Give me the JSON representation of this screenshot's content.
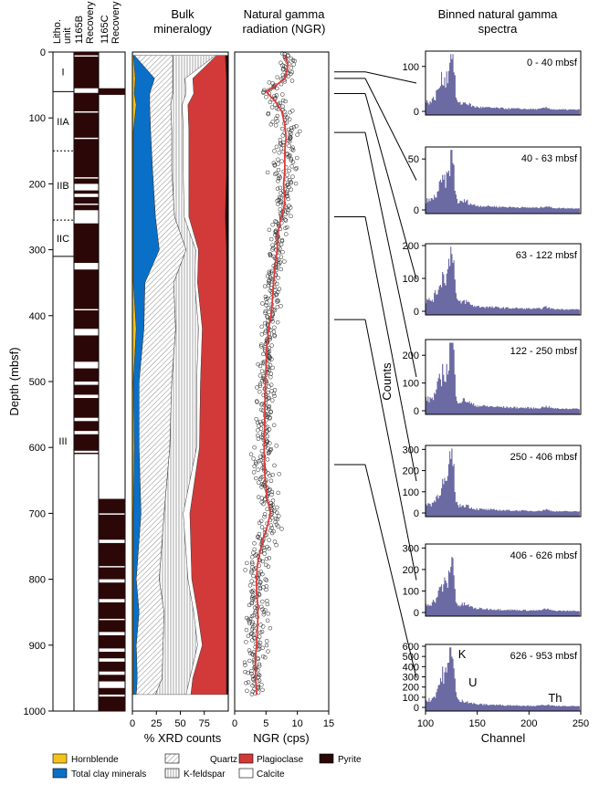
{
  "colors": {
    "hornblende": "#f5c21b",
    "clay": "#0a6fc7",
    "plagioclase": "#d23a3a",
    "pyrite": "#2b0707",
    "spectrum_fill": "#6b6aa3",
    "ngr_fit": "#e23b3b",
    "core_dark": "#2b0707"
  },
  "header": {
    "litho": "Litho.",
    "unit": "unit",
    "hole_b": "1165B",
    "hole_c": "1165C",
    "recovery": "Recovery",
    "bulk_title_1": "Bulk",
    "bulk_title_2": "mineralogy",
    "ngr_title_1": "Natural gamma",
    "ngr_title_2": "radiation (NGR)",
    "spectra_title_1": "Binned natural gamma",
    "spectra_title_2": "spectra"
  },
  "units": [
    {
      "label": "I",
      "top": 0,
      "bottom": 60
    },
    {
      "label": "IIA",
      "top": 60,
      "bottom": 150
    },
    {
      "label": "IIB",
      "top": 150,
      "bottom": 255
    },
    {
      "label": "IIC",
      "top": 255,
      "bottom": 310
    },
    {
      "label": "III",
      "top": 310,
      "bottom": 1000
    }
  ],
  "legend": {
    "hornblende": "Hornblende",
    "clay": "Total clay minerals",
    "quartz": "Quartz",
    "kfeldspar": "K-feldspar",
    "plagioclase": "Plagioclase",
    "calcite": "Calcite",
    "pyrite": "Pyrite"
  },
  "chart_data": [
    {
      "type": "area",
      "id": "bulk-mineralogy",
      "title": "Bulk mineralogy",
      "xlabel": "% XRD counts",
      "ylabel": "Depth (mbsf)",
      "xlim": [
        0,
        100
      ],
      "ylim": [
        1000,
        0
      ],
      "x_ticks": [
        0,
        25,
        50,
        75
      ],
      "y_ticks": [
        0,
        100,
        200,
        300,
        400,
        500,
        600,
        700,
        800,
        900,
        1000
      ],
      "stack_order": [
        "Hornblende",
        "Total clay minerals",
        "Quartz",
        "K-feldspar",
        "Calcite",
        "Plagioclase",
        "Pyrite"
      ],
      "depth": [
        5,
        40,
        63,
        80,
        120,
        180,
        250,
        300,
        350,
        420,
        500,
        600,
        700,
        800,
        850,
        900,
        950,
        975
      ],
      "series": [
        {
          "name": "Hornblende",
          "values": [
            1,
            3,
            2,
            4,
            1,
            1,
            1,
            1,
            1,
            4,
            1,
            2,
            1,
            1,
            1,
            1,
            1,
            1
          ]
        },
        {
          "name": "Total clay minerals",
          "values": [
            1,
            20,
            16,
            14,
            18,
            20,
            23,
            27,
            12,
            8,
            6,
            5,
            8,
            3,
            6,
            3,
            4,
            3
          ]
        },
        {
          "name": "Quartz",
          "values": [
            40,
            19,
            24,
            22,
            22,
            20,
            20,
            28,
            30,
            33,
            34,
            32,
            24,
            24,
            26,
            28,
            26,
            20
          ]
        },
        {
          "name": "K-feldspar",
          "values": [
            45,
            13,
            14,
            12,
            12,
            12,
            10,
            10,
            22,
            24,
            26,
            28,
            20,
            30,
            31,
            36,
            29,
            32
          ]
        },
        {
          "name": "Calcite",
          "values": [
            1,
            8,
            8,
            6,
            6,
            6,
            5,
            3,
            3,
            4,
            4,
            3,
            7,
            4,
            4,
            5,
            3,
            5
          ]
        },
        {
          "name": "Plagioclase",
          "values": [
            9,
            35,
            34,
            40,
            39,
            39,
            38,
            29,
            30,
            25,
            27,
            28,
            38,
            36,
            30,
            25,
            35,
            37
          ]
        },
        {
          "name": "Pyrite",
          "values": [
            3,
            2,
            2,
            2,
            2,
            2,
            3,
            2,
            2,
            2,
            2,
            2,
            2,
            2,
            2,
            2,
            2,
            2
          ]
        }
      ]
    },
    {
      "type": "scatter",
      "id": "ngr-profile",
      "title": "Natural gamma radiation (NGR)",
      "xlabel": "NGR (cps)",
      "ylabel": "Depth (mbsf)",
      "xlim": [
        0,
        15
      ],
      "ylim": [
        1000,
        0
      ],
      "x_ticks": [
        0,
        5,
        10,
        15
      ],
      "y_ticks": [
        0,
        100,
        200,
        300,
        400,
        500,
        600,
        700,
        800,
        900,
        1000
      ],
      "fit_depth": [
        5,
        20,
        40,
        55,
        60,
        75,
        90,
        110,
        130,
        150,
        180,
        200,
        230,
        260,
        280,
        300,
        320,
        350,
        380,
        400,
        420,
        450,
        480,
        500,
        550,
        600,
        640,
        660,
        680,
        690,
        700,
        720,
        740,
        760,
        780,
        800,
        820,
        840,
        860,
        880,
        900,
        920,
        940,
        960,
        975
      ],
      "fit_ngr": [
        8,
        8.5,
        8,
        6,
        5,
        6.5,
        7.5,
        8,
        8.2,
        8,
        8,
        7.8,
        8,
        7.2,
        6.8,
        6.8,
        6.5,
        6.2,
        6,
        5.8,
        5.4,
        5.1,
        5,
        4.9,
        4.8,
        4.7,
        4.8,
        5,
        5.2,
        5.5,
        5.7,
        5.2,
        4.5,
        4,
        3.6,
        3.5,
        3.5,
        3.7,
        3.7,
        3.6,
        3.5,
        3.3,
        3.3,
        3.4,
        3.5
      ],
      "scatter_spread": [
        1.3,
        1.6,
        1.7,
        2.0,
        1.3,
        1.2,
        1.1,
        1.0,
        1.5,
        1.6,
        1.8,
        1.6,
        1.5,
        1.4,
        1.1
      ],
      "scatter_spread_depth": [
        0,
        60,
        100,
        150,
        200,
        250,
        300,
        400,
        500,
        600,
        700,
        800,
        900,
        950,
        975
      ]
    },
    {
      "type": "bar",
      "id": "spectra",
      "title": "Binned natural gamma spectra",
      "xlabel": "Channel",
      "ylabel": "Counts",
      "xlim": [
        100,
        250
      ],
      "x_ticks": [
        100,
        150,
        200,
        250
      ],
      "panels": [
        {
          "label": "0 - 40 mbsf",
          "top": 0,
          "bottom": 40,
          "ymax": 130,
          "y_ticks": [
            0,
            100
          ],
          "peak": 115,
          "secondary": 60,
          "baseline": 18
        },
        {
          "label": "40 - 63 mbsf",
          "top": 40,
          "bottom": 63,
          "ymax": 60,
          "y_ticks": [
            0,
            50
          ],
          "peak": 42,
          "secondary": 22,
          "baseline": 8
        },
        {
          "label": "63  - 122 mbsf",
          "top": 63,
          "bottom": 122,
          "ymax": 200,
          "y_ticks": [
            0,
            100,
            200
          ],
          "peak": 165,
          "secondary": 85,
          "baseline": 28
        },
        {
          "label": "122 - 250 mbsf",
          "top": 122,
          "bottom": 250,
          "ymax": 250,
          "y_ticks": [
            0,
            100,
            200
          ],
          "peak": 210,
          "secondary": 110,
          "baseline": 35
        },
        {
          "label": "250 - 406 mbsf",
          "top": 250,
          "bottom": 406,
          "ymax": 310,
          "y_ticks": [
            0,
            100,
            200,
            300
          ],
          "peak": 210,
          "secondary": 110,
          "baseline": 35
        },
        {
          "label": "406 - 626 mbsf",
          "top": 406,
          "bottom": 626,
          "ymax": 310,
          "y_ticks": [
            0,
            100,
            200,
            300
          ],
          "peak": 185,
          "secondary": 100,
          "baseline": 35
        },
        {
          "label": "626 - 953 mbsf",
          "top": 626,
          "bottom": 953,
          "ymax": 600,
          "y_ticks": [
            0,
            100,
            200,
            300,
            400,
            500,
            600
          ],
          "peak": 490,
          "secondary": 280,
          "baseline": 60,
          "annotations": [
            {
              "text": "K",
              "channel": 128,
              "count": 520
            },
            {
              "text": "U",
              "channel": 138,
              "count": 240
            },
            {
              "text": "Th",
              "channel": 215,
              "count": 90
            }
          ]
        }
      ]
    }
  ],
  "recovery": {
    "hole_b_recovered": [
      [
        0,
        5
      ],
      [
        7,
        55
      ],
      [
        62,
        90
      ],
      [
        92,
        130
      ],
      [
        132,
        190
      ],
      [
        192,
        200
      ],
      [
        210,
        215
      ],
      [
        220,
        230
      ],
      [
        232,
        240
      ],
      [
        260,
        320
      ],
      [
        330,
        390
      ],
      [
        392,
        420
      ],
      [
        430,
        470
      ],
      [
        480,
        500
      ],
      [
        505,
        520
      ],
      [
        525,
        555
      ],
      [
        560,
        575
      ],
      [
        580,
        605
      ],
      [
        608,
        610
      ]
    ],
    "hole_c_recovered": [
      [
        55,
        65
      ],
      [
        678,
        700
      ],
      [
        702,
        740
      ],
      [
        745,
        780
      ],
      [
        782,
        800
      ],
      [
        805,
        830
      ],
      [
        835,
        860
      ],
      [
        862,
        880
      ],
      [
        885,
        905
      ],
      [
        910,
        920
      ],
      [
        925,
        940
      ],
      [
        945,
        955
      ],
      [
        965,
        975
      ],
      [
        978,
        1000
      ]
    ]
  }
}
